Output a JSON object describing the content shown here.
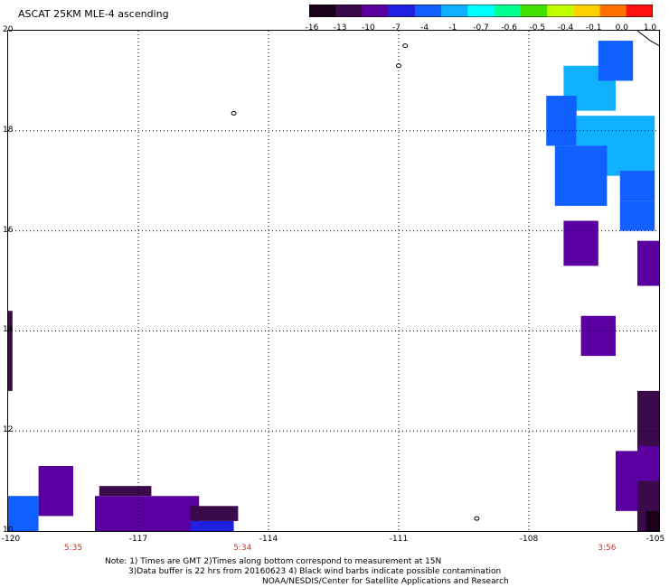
{
  "title": "ASCAT 25KM MLE-4 ascending",
  "colorbar": {
    "labels": [
      "-16",
      "-13",
      "-10",
      "-7",
      "-4",
      "-1",
      "-0.7",
      "-0.6",
      "-0.5",
      "-0.4",
      "-0.1",
      "0.0",
      "1.0"
    ],
    "colors": [
      "#1a001a",
      "#3a0a4a",
      "#5a00a0",
      "#2020e0",
      "#1060ff",
      "#10b0ff",
      "#00ffff",
      "#00ff90",
      "#40e000",
      "#c0ff00",
      "#ffd000",
      "#ff7000",
      "#ff1010"
    ]
  },
  "axes": {
    "x_ticks": [
      "-120",
      "-117",
      "-114",
      "-111",
      "-108",
      "-105"
    ],
    "y_ticks": [
      "20",
      "18",
      "16",
      "14",
      "12",
      "10"
    ]
  },
  "times": [
    "5:35",
    "5:34",
    "3:56"
  ],
  "notes": {
    "line1": "Note: 1) Times are GMT 2)Times along bottom correspond to measurement at 15N",
    "line2": "3)Data buffer is 22 hrs from 20160623 4) Black wind barbs indicate possible contamination",
    "line3": "NOAA/NESDIS/Center for Satellite Applications and Research"
  },
  "map_extent": {
    "lon": [
      -120,
      -105
    ],
    "lat": [
      10,
      20
    ]
  },
  "cells": [
    {
      "lon": [
        -107.2,
        -106.0
      ],
      "lat": [
        18.4,
        19.3
      ],
      "color": "#10b0ff"
    },
    {
      "lon": [
        -106.4,
        -105.6
      ],
      "lat": [
        19.0,
        19.8
      ],
      "color": "#1060ff"
    },
    {
      "lon": [
        -107.6,
        -106.9
      ],
      "lat": [
        17.7,
        18.7
      ],
      "color": "#1060ff"
    },
    {
      "lon": [
        -106.9,
        -105.1
      ],
      "lat": [
        17.1,
        18.3
      ],
      "color": "#10b0ff"
    },
    {
      "lon": [
        -107.4,
        -106.2
      ],
      "lat": [
        16.5,
        17.7
      ],
      "color": "#1060ff"
    },
    {
      "lon": [
        -105.9,
        -105.1
      ],
      "lat": [
        16.6,
        17.2
      ],
      "color": "#1060ff"
    },
    {
      "lon": [
        -105.9,
        -105.1
      ],
      "lat": [
        16.0,
        16.6
      ],
      "color": "#1060ff"
    },
    {
      "lon": [
        -107.2,
        -106.4
      ],
      "lat": [
        15.3,
        16.2
      ],
      "color": "#5a00a0"
    },
    {
      "lon": [
        -105.5,
        -104.7
      ],
      "lat": [
        14.9,
        15.8
      ],
      "color": "#5a00a0"
    },
    {
      "lon": [
        -106.8,
        -106.0
      ],
      "lat": [
        13.5,
        14.3
      ],
      "color": "#5a00a0"
    },
    {
      "lon": [
        -105.5,
        -104.8
      ],
      "lat": [
        11.6,
        12.8
      ],
      "color": "#3a0a4a"
    },
    {
      "lon": [
        -105.5,
        -104.8
      ],
      "lat": [
        10.0,
        11.6
      ],
      "color": "#3a0a4a"
    },
    {
      "lon": [
        -105.5,
        -104.9
      ],
      "lat": [
        11.0,
        11.7
      ],
      "color": "#5a00a0"
    },
    {
      "lon": [
        -105.3,
        -104.8
      ],
      "lat": [
        10.0,
        10.4
      ],
      "color": "#1a001a"
    },
    {
      "lon": [
        -106.0,
        -105.5
      ],
      "lat": [
        10.4,
        11.6
      ],
      "color": "#5a00a0"
    },
    {
      "lon": [
        -120.0,
        -119.9
      ],
      "lat": [
        12.8,
        14.4
      ],
      "color": "#3a0a4a"
    },
    {
      "lon": [
        -119.3,
        -118.5
      ],
      "lat": [
        10.3,
        11.3
      ],
      "color": "#5a00a0"
    },
    {
      "lon": [
        -120.0,
        -119.3
      ],
      "lat": [
        10.0,
        10.7
      ],
      "color": "#1060ff"
    },
    {
      "lon": [
        -117.9,
        -116.7
      ],
      "lat": [
        10.7,
        10.9
      ],
      "color": "#3a0a4a"
    },
    {
      "lon": [
        -118.0,
        -115.6
      ],
      "lat": [
        10.0,
        10.7
      ],
      "color": "#5a00a0"
    },
    {
      "lon": [
        -115.8,
        -114.7
      ],
      "lat": [
        10.2,
        10.5
      ],
      "color": "#3a0a4a"
    },
    {
      "lon": [
        -115.8,
        -114.8
      ],
      "lat": [
        10.0,
        10.2
      ],
      "color": "#2020e0"
    }
  ],
  "coastline": [
    {
      "lon": [
        -105.5,
        -105.2,
        -105.0
      ],
      "lat": [
        20.0,
        19.8,
        19.7
      ]
    }
  ],
  "islands": [
    {
      "lon": -111.0,
      "lat": 19.3
    },
    {
      "lon": -110.85,
      "lat": 19.7
    },
    {
      "lon": -114.8,
      "lat": 18.35
    },
    {
      "lon": -109.2,
      "lat": 10.25
    }
  ]
}
